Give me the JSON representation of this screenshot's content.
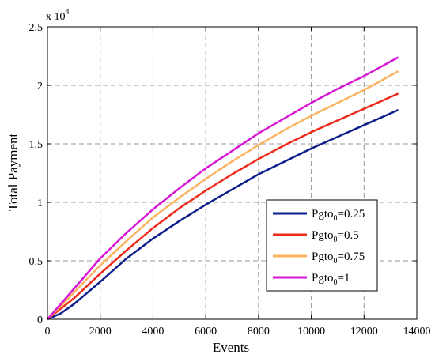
{
  "chart_data": {
    "type": "line",
    "xlabel": "Events",
    "ylabel": "Total Payment",
    "y_multiplier_label": "x 10",
    "y_multiplier_exponent": "4",
    "xlim": [
      0,
      14000
    ],
    "ylim": [
      0,
      2.5
    ],
    "x_ticks": [
      0,
      2000,
      4000,
      6000,
      8000,
      10000,
      12000,
      14000
    ],
    "y_ticks": [
      0,
      0.5,
      1,
      1.5,
      2,
      2.5
    ],
    "x_tick_labels": [
      "0",
      "2000",
      "4000",
      "6000",
      "8000",
      "10000",
      "12000",
      "14000"
    ],
    "y_tick_labels": [
      "0",
      "0.5",
      "1",
      "1.5",
      "2",
      "2.5"
    ],
    "grid": true,
    "legend_position": "lower-right",
    "x": [
      0,
      500,
      1000,
      2000,
      3000,
      4000,
      5000,
      6000,
      7000,
      8000,
      9000,
      10000,
      11000,
      12000,
      13300
    ],
    "series": [
      {
        "name_base": "Pgto",
        "name_sub": "0",
        "name_suffix": "=0.25",
        "color": "#0d1f8c",
        "values": [
          0,
          0.05,
          0.13,
          0.32,
          0.52,
          0.69,
          0.84,
          0.98,
          1.11,
          1.24,
          1.35,
          1.46,
          1.56,
          1.66,
          1.79
        ]
      },
      {
        "name_base": "Pgto",
        "name_sub": "0",
        "name_suffix": "=0.5",
        "color": "#ee2a1b",
        "values": [
          0,
          0.09,
          0.18,
          0.39,
          0.59,
          0.78,
          0.95,
          1.1,
          1.24,
          1.37,
          1.49,
          1.6,
          1.7,
          1.8,
          1.93
        ]
      },
      {
        "name_base": "Pgto",
        "name_sub": "0",
        "name_suffix": "=0.75",
        "color": "#fbb360",
        "values": [
          0,
          0.11,
          0.23,
          0.46,
          0.67,
          0.87,
          1.04,
          1.2,
          1.35,
          1.49,
          1.62,
          1.74,
          1.85,
          1.96,
          2.12
        ]
      },
      {
        "name_base": "Pgto",
        "name_sub": "0",
        "name_suffix": "=1",
        "color": "#d716d6",
        "values": [
          0,
          0.13,
          0.26,
          0.52,
          0.74,
          0.94,
          1.12,
          1.29,
          1.44,
          1.59,
          1.72,
          1.85,
          1.97,
          2.08,
          2.24
        ]
      }
    ]
  }
}
